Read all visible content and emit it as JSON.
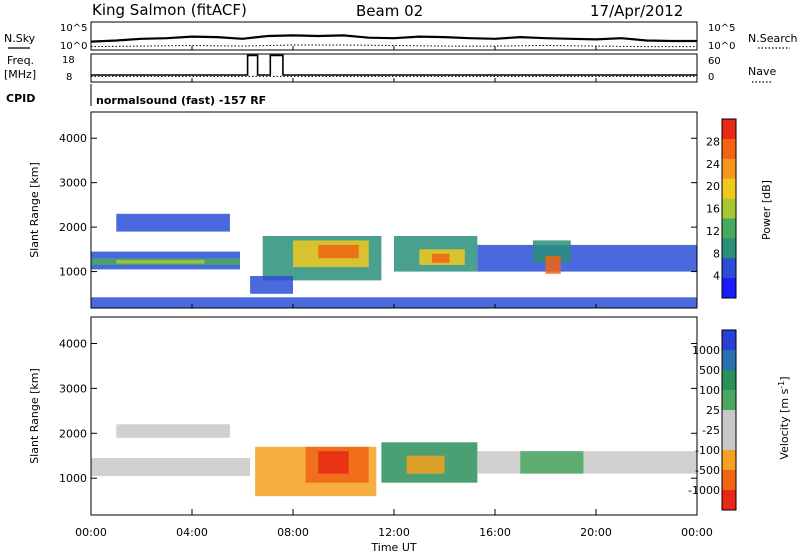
{
  "header": {
    "station": "King Salmon (fitACF)",
    "beam": "Beam 02",
    "date": "17/Apr/2012"
  },
  "chart_data": [
    {
      "type": "line",
      "panel": "noise",
      "left_label": "N.Sky",
      "right_label": "N.Search",
      "left_ticks": [
        "10^5",
        "10^0"
      ],
      "right_ticks": [
        "10^5",
        "10^0"
      ],
      "series": [
        {
          "name": "N.Sky",
          "style": "solid",
          "values": [
            [
              0,
              1.5
            ],
            [
              1,
              1.7
            ],
            [
              2,
              2.0
            ],
            [
              3,
              2.1
            ],
            [
              4,
              2.4
            ],
            [
              5,
              2.3
            ],
            [
              6,
              2.0
            ],
            [
              7,
              2.5
            ],
            [
              8,
              2.6
            ],
            [
              9,
              2.5
            ],
            [
              10,
              2.6
            ],
            [
              11,
              2.2
            ],
            [
              12,
              2.1
            ],
            [
              13,
              2.4
            ],
            [
              14,
              2.3
            ],
            [
              15,
              2.1
            ],
            [
              16,
              2.0
            ],
            [
              17,
              2.3
            ],
            [
              18,
              2.1
            ],
            [
              19,
              2.0
            ],
            [
              20,
              1.9
            ],
            [
              21,
              2.1
            ],
            [
              22,
              1.7
            ],
            [
              23,
              1.6
            ],
            [
              24,
              1.6
            ]
          ]
        },
        {
          "name": "N.Search",
          "style": "dotted",
          "values": [
            [
              0,
              0.6
            ],
            [
              2,
              0.7
            ],
            [
              4,
              0.8
            ],
            [
              6,
              0.7
            ],
            [
              8,
              0.9
            ],
            [
              10,
              0.9
            ],
            [
              12,
              0.8
            ],
            [
              14,
              0.7
            ],
            [
              16,
              0.7
            ],
            [
              18,
              0.8
            ],
            [
              20,
              0.7
            ],
            [
              22,
              0.6
            ],
            [
              24,
              0.6
            ]
          ]
        }
      ]
    },
    {
      "type": "line",
      "panel": "frequency",
      "left_label": "Freq.",
      "left_unit": "[MHz]",
      "right_label": "Nave",
      "left_ticks": [
        "18",
        "8"
      ],
      "right_ticks": [
        "60",
        "0"
      ],
      "series": [
        {
          "name": "Freq.",
          "style": "solid",
          "values": [
            [
              0,
              10.5
            ],
            [
              6.2,
              10.5
            ],
            [
              6.2,
              17.5
            ],
            [
              6.6,
              17.5
            ],
            [
              6.6,
              10.5
            ],
            [
              7.1,
              10.5
            ],
            [
              7.1,
              17.5
            ],
            [
              7.6,
              17.5
            ],
            [
              7.6,
              10.5
            ],
            [
              24,
              10.5
            ]
          ]
        },
        {
          "name": "Nave",
          "style": "dotted",
          "values": [
            [
              0,
              12
            ],
            [
              7.7,
              12
            ],
            [
              8.1,
              12
            ],
            [
              24,
              12
            ]
          ]
        }
      ]
    },
    {
      "type": "text",
      "panel": "cpid",
      "label": "CPID",
      "value": "normalsound (fast) -157 RF"
    },
    {
      "type": "heatmap",
      "panel": "power",
      "ylabel": "Slant Range [km]",
      "ylim": [
        180,
        4590
      ],
      "yticks": [
        1000,
        2000,
        3000,
        4000
      ],
      "xlim": [
        0,
        24
      ],
      "colorbar": {
        "label": "Power [dB]",
        "ticks": [
          "4",
          "8",
          "12",
          "16",
          "20",
          "24",
          "28"
        ],
        "colors": [
          "#1a1aff",
          "#2a4fd6",
          "#2a8f7a",
          "#4aa860",
          "#a8c832",
          "#f0c81e",
          "#f5961e",
          "#f06414",
          "#e62814"
        ]
      },
      "bands": [
        {
          "t0": 0.0,
          "t1": 5.9,
          "r0": 1050,
          "r1": 1450,
          "color": "#2a4fd6"
        },
        {
          "t0": 0.0,
          "t1": 5.9,
          "r0": 1150,
          "r1": 1300,
          "color": "#4aa860"
        },
        {
          "t0": 1.0,
          "t1": 4.5,
          "r0": 1180,
          "r1": 1260,
          "color": "#a8c832"
        },
        {
          "t0": 1.0,
          "t1": 5.5,
          "r0": 1900,
          "r1": 2300,
          "color": "#2a4fd6"
        },
        {
          "t0": 6.8,
          "t1": 11.5,
          "r0": 800,
          "r1": 1800,
          "color": "#2a8f7a"
        },
        {
          "t0": 8.0,
          "t1": 11.0,
          "r0": 1100,
          "r1": 1700,
          "color": "#f0c81e"
        },
        {
          "t0": 9.0,
          "t1": 10.6,
          "r0": 1300,
          "r1": 1600,
          "color": "#f06414"
        },
        {
          "t0": 6.3,
          "t1": 8.0,
          "r0": 500,
          "r1": 900,
          "color": "#2a4fd6"
        },
        {
          "t0": 12.0,
          "t1": 15.3,
          "r0": 1000,
          "r1": 1800,
          "color": "#2a8f7a"
        },
        {
          "t0": 13.0,
          "t1": 14.8,
          "r0": 1150,
          "r1": 1500,
          "color": "#f0c81e"
        },
        {
          "t0": 13.5,
          "t1": 14.2,
          "r0": 1200,
          "r1": 1400,
          "color": "#f06414"
        },
        {
          "t0": 15.3,
          "t1": 24.0,
          "r0": 1000,
          "r1": 1600,
          "color": "#2a4fd6"
        },
        {
          "t0": 17.5,
          "t1": 19.0,
          "r0": 1200,
          "r1": 1700,
          "color": "#2a8f7a"
        },
        {
          "t0": 18.0,
          "t1": 18.6,
          "r0": 950,
          "r1": 1350,
          "color": "#f06414"
        },
        {
          "t0": 0.0,
          "t1": 24.0,
          "r0": 180,
          "r1": 420,
          "color": "#2a4fd6"
        }
      ]
    },
    {
      "type": "heatmap",
      "panel": "velocity",
      "ylabel": "Slant Range [km]",
      "ylim": [
        180,
        4590
      ],
      "yticks": [
        1000,
        2000,
        3000,
        4000
      ],
      "xlim": [
        0,
        24
      ],
      "xlabel": "Time UT",
      "xticks": [
        "00:00",
        "04:00",
        "08:00",
        "12:00",
        "16:00",
        "20:00",
        "00:00"
      ],
      "colorbar": {
        "label": "Velocity [m s",
        "label_sup": "-1",
        "label_end": "]",
        "ticks": [
          "1000",
          "500",
          "100",
          "25",
          "-25",
          "-100",
          "-500",
          "-1000"
        ],
        "colors": [
          "#2a3fd6",
          "#2a6fb0",
          "#2a8f5a",
          "#4aa860",
          "#c8c8c8",
          "#c8c8c8",
          "#f5a01e",
          "#f06414",
          "#e62814"
        ]
      },
      "bands": [
        {
          "t0": 0.0,
          "t1": 6.3,
          "r0": 1050,
          "r1": 1450,
          "color": "#c8c8c8"
        },
        {
          "t0": 1.0,
          "t1": 5.5,
          "r0": 1900,
          "r1": 2200,
          "color": "#c8c8c8"
        },
        {
          "t0": 6.5,
          "t1": 11.3,
          "r0": 600,
          "r1": 1700,
          "color": "#f5a01e"
        },
        {
          "t0": 8.5,
          "t1": 11.0,
          "r0": 900,
          "r1": 1700,
          "color": "#f06414"
        },
        {
          "t0": 9.0,
          "t1": 10.2,
          "r0": 1100,
          "r1": 1600,
          "color": "#e62814"
        },
        {
          "t0": 11.5,
          "t1": 15.3,
          "r0": 900,
          "r1": 1800,
          "color": "#2a8f5a"
        },
        {
          "t0": 12.5,
          "t1": 14.0,
          "r0": 1100,
          "r1": 1500,
          "color": "#f5a01e"
        },
        {
          "t0": 15.3,
          "t1": 24.0,
          "r0": 1100,
          "r1": 1600,
          "color": "#c8c8c8"
        },
        {
          "t0": 17.0,
          "t1": 19.5,
          "r0": 1100,
          "r1": 1600,
          "color": "#4aa860"
        }
      ]
    }
  ]
}
